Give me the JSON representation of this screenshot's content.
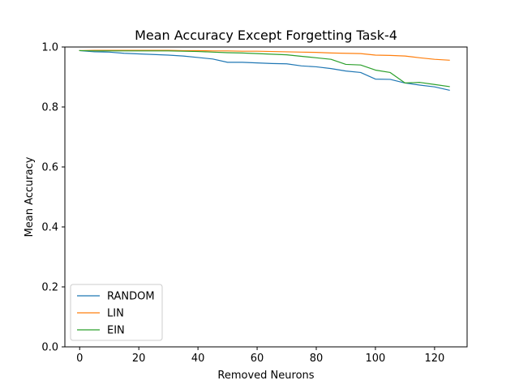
{
  "chart_data": {
    "type": "line",
    "title": "Mean Accuracy Except Forgetting Task-4",
    "xlabel": "Removed Neurons",
    "ylabel": "Mean Accuracy",
    "xlim": [
      -5,
      131
    ],
    "ylim": [
      0.0,
      1.0
    ],
    "xticks": [
      0,
      20,
      40,
      60,
      80,
      100,
      120
    ],
    "yticks": [
      0.0,
      0.2,
      0.4,
      0.6,
      0.8,
      1.0
    ],
    "xtick_labels": [
      "0",
      "20",
      "40",
      "60",
      "80",
      "100",
      "120"
    ],
    "ytick_labels": [
      "0.0",
      "0.2",
      "0.4",
      "0.6",
      "0.8",
      "1.0"
    ],
    "grid": false,
    "legend_position": "lower-left",
    "x": [
      0,
      5,
      10,
      15,
      20,
      25,
      30,
      35,
      40,
      45,
      50,
      55,
      60,
      65,
      70,
      75,
      80,
      85,
      90,
      95,
      100,
      105,
      110,
      115,
      120,
      125
    ],
    "series": [
      {
        "name": "RANDOM",
        "color": "#1f77b4",
        "values": [
          0.988,
          0.984,
          0.983,
          0.979,
          0.977,
          0.975,
          0.973,
          0.97,
          0.965,
          0.96,
          0.949,
          0.949,
          0.947,
          0.945,
          0.944,
          0.937,
          0.934,
          0.928,
          0.92,
          0.915,
          0.893,
          0.892,
          0.88,
          0.873,
          0.867,
          0.856
        ]
      },
      {
        "name": "LIN",
        "color": "#ff7f0e",
        "values": [
          0.988,
          0.989,
          0.989,
          0.989,
          0.989,
          0.989,
          0.989,
          0.988,
          0.988,
          0.987,
          0.987,
          0.986,
          0.986,
          0.985,
          0.984,
          0.983,
          0.982,
          0.98,
          0.979,
          0.978,
          0.973,
          0.972,
          0.97,
          0.964,
          0.959,
          0.956
        ]
      },
      {
        "name": "EIN",
        "color": "#2ca02c",
        "values": [
          0.988,
          0.987,
          0.987,
          0.987,
          0.987,
          0.987,
          0.987,
          0.986,
          0.985,
          0.983,
          0.981,
          0.98,
          0.978,
          0.976,
          0.974,
          0.969,
          0.964,
          0.959,
          0.942,
          0.94,
          0.923,
          0.915,
          0.88,
          0.882,
          0.875,
          0.868
        ]
      }
    ]
  }
}
